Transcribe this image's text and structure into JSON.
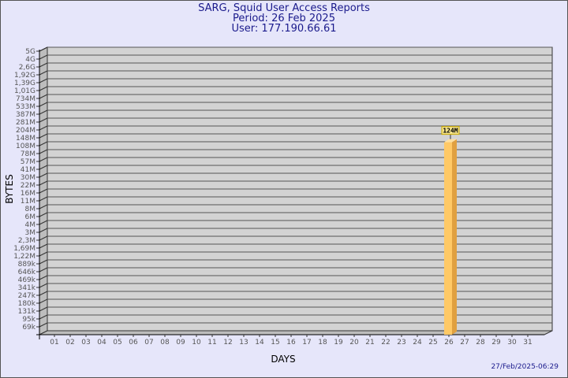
{
  "header": {
    "title": "SARG, Squid User Access Reports",
    "period": "Period: 26 Feb 2025",
    "user": "User: 177.190.66.61"
  },
  "timestamp": "27/Feb/2025-06:29",
  "colors": {
    "background": "#e6e6fa",
    "plot": "#d3d3d3",
    "bar": "#ffc966",
    "bar_side": "#e0a040",
    "label_box": "#f5e38a",
    "text": "#1a1a8c"
  },
  "chart_data": {
    "type": "bar",
    "title": "SARG, Squid User Access Reports",
    "xlabel": "DAYS",
    "ylabel": "BYTES",
    "categories": [
      "01",
      "02",
      "03",
      "04",
      "05",
      "06",
      "07",
      "08",
      "09",
      "10",
      "11",
      "12",
      "13",
      "14",
      "15",
      "16",
      "17",
      "18",
      "19",
      "20",
      "21",
      "22",
      "23",
      "24",
      "25",
      "26",
      "27",
      "28",
      "29",
      "30",
      "31"
    ],
    "y_ticks": [
      "5G",
      "4G",
      "2,6G",
      "1,92G",
      "1,39G",
      "1,01G",
      "734M",
      "533M",
      "387M",
      "281M",
      "204M",
      "148M",
      "108M",
      "78M",
      "57M",
      "41M",
      "30M",
      "22M",
      "16M",
      "11M",
      "8M",
      "6M",
      "4M",
      "3M",
      "2,3M",
      "1,69M",
      "1,22M",
      "889k",
      "646k",
      "469k",
      "341k",
      "247k",
      "180k",
      "131k",
      "95k",
      "69k"
    ],
    "y_scale": "log",
    "grid": true,
    "bars": [
      {
        "day": "26",
        "value": 124000000,
        "label": "124M"
      }
    ]
  }
}
